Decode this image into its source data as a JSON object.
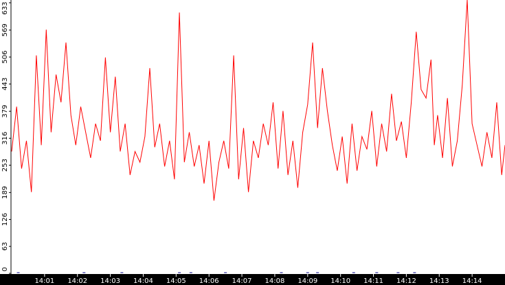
{
  "chart_data": {
    "type": "line",
    "title": "",
    "xlabel": "",
    "ylabel": "",
    "ylim": [
      0,
      633
    ],
    "y_ticks": [
      "0",
      "63",
      "126",
      "189",
      "253",
      "316",
      "379",
      "443",
      "506",
      "569",
      "633"
    ],
    "x_ticks": [
      "14:01",
      "14:02",
      "14:03",
      "14:04",
      "14:05",
      "14:06",
      "14:07",
      "14:08",
      "14:09",
      "14:10",
      "14:11",
      "14:12",
      "14:13",
      "14:14"
    ],
    "x_range_minutes": [
      0.0,
      15.0
    ],
    "grid": false,
    "legend": "none",
    "colors": {
      "series": "#ff0000",
      "axis_band": "#000000",
      "baseline_marks": "#000088"
    },
    "series": [
      {
        "color": "#ff0000",
        "x": [
          0.0,
          0.15,
          0.3,
          0.45,
          0.6,
          0.75,
          0.9,
          1.05,
          1.2,
          1.35,
          1.5,
          1.65,
          1.8,
          1.95,
          2.1,
          2.25,
          2.4,
          2.55,
          2.7,
          2.85,
          3.0,
          3.15,
          3.3,
          3.45,
          3.6,
          3.75,
          3.9,
          4.05,
          4.2,
          4.35,
          4.5,
          4.65,
          4.8,
          4.95,
          5.1,
          5.25,
          5.4,
          5.55,
          5.7,
          5.85,
          6.0,
          6.15,
          6.3,
          6.45,
          6.6,
          6.75,
          6.9,
          7.05,
          7.2,
          7.35,
          7.5,
          7.65,
          7.8,
          7.95,
          8.1,
          8.25,
          8.4,
          8.55,
          8.7,
          8.85,
          9.0,
          9.15,
          9.3,
          9.45,
          9.6,
          9.75,
          9.9,
          10.05,
          10.2,
          10.35,
          10.5,
          10.65,
          10.8,
          10.95,
          11.1,
          11.25,
          11.4,
          11.55,
          11.7,
          11.85,
          12.0,
          12.15,
          12.3,
          12.45,
          12.6,
          12.75,
          12.85,
          12.95,
          13.1,
          13.25,
          13.4,
          13.55,
          13.7,
          13.85,
          14.0,
          14.15,
          14.3,
          14.45,
          14.6,
          14.75,
          14.9,
          15.0
        ],
        "values": [
          285,
          390,
          245,
          310,
          190,
          510,
          300,
          570,
          330,
          465,
          400,
          540,
          370,
          300,
          390,
          330,
          270,
          350,
          310,
          505,
          330,
          460,
          285,
          350,
          230,
          285,
          260,
          320,
          480,
          295,
          350,
          250,
          310,
          220,
          610,
          260,
          330,
          250,
          300,
          210,
          310,
          170,
          260,
          310,
          245,
          510,
          220,
          340,
          190,
          310,
          270,
          350,
          300,
          400,
          245,
          380,
          230,
          310,
          200,
          330,
          395,
          540,
          340,
          480,
          380,
          300,
          240,
          320,
          210,
          350,
          240,
          320,
          290,
          380,
          250,
          350,
          285,
          420,
          310,
          355,
          270,
          400,
          565,
          430,
          410,
          500,
          300,
          370,
          270,
          410,
          250,
          310,
          440,
          640,
          350,
          300,
          250,
          330,
          270,
          400,
          230,
          300
        ]
      }
    ],
    "baseline_marks_x": [
      0.2,
      2.2,
      3.35,
      5.1,
      5.45,
      6.5,
      8.2,
      9.0,
      9.3,
      10.4,
      11.1,
      11.75,
      12.25
    ]
  }
}
